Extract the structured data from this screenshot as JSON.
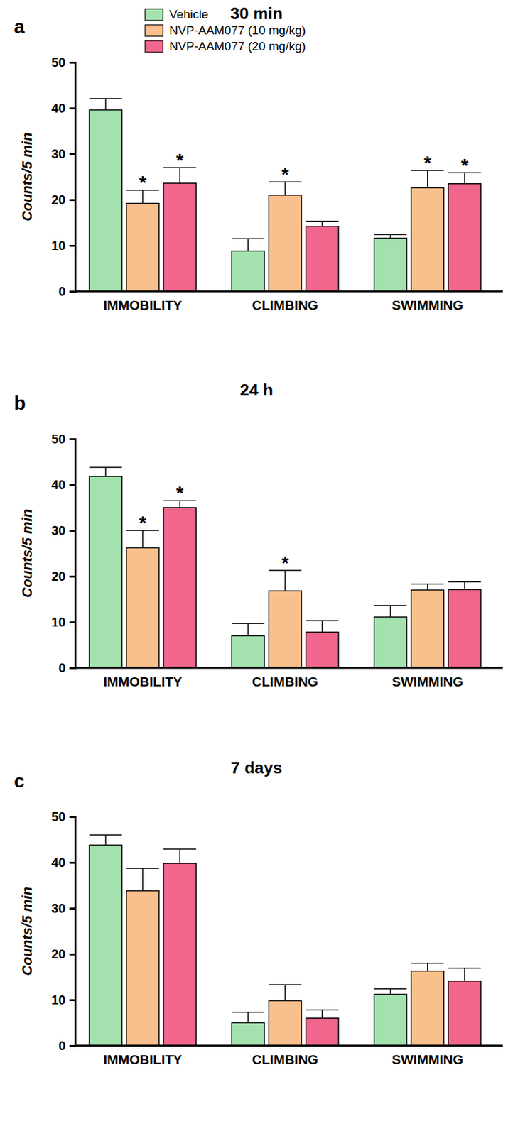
{
  "chart_data": [
    {
      "type": "bar",
      "title": "30 min",
      "panel_label": "a",
      "y_label": "Counts/5 min",
      "categories": [
        "IMMOBILITY",
        "CLIMBING",
        "SWIMMING"
      ],
      "ylim": [
        0,
        50
      ],
      "yticks": [
        0,
        10,
        20,
        30,
        40,
        50
      ],
      "legend": "upper left",
      "series": [
        {
          "name": "Vehicle",
          "color": "#a3e2ae",
          "values": [
            39.6,
            8.8,
            11.6
          ],
          "errors": [
            2.5,
            2.7,
            0.8
          ],
          "significance": [
            null,
            null,
            null
          ]
        },
        {
          "name": "NVP-AAM077 (10 mg/kg)",
          "color": "#f7c08c",
          "values": [
            19.2,
            21.0,
            22.6
          ],
          "errors": [
            2.9,
            2.9,
            3.8
          ],
          "significance": [
            "*",
            "*",
            "*"
          ]
        },
        {
          "name": "NVP-AAM077 (20 mg/kg)",
          "color": "#f0668c",
          "values": [
            23.6,
            14.2,
            23.5
          ],
          "errors": [
            3.4,
            1.1,
            2.4
          ],
          "significance": [
            "*",
            null,
            "*"
          ]
        }
      ]
    },
    {
      "type": "bar",
      "title": "24 h",
      "panel_label": "b",
      "y_label": "Counts/5 min",
      "categories": [
        "IMMOBILITY",
        "CLIMBING",
        "SWIMMING"
      ],
      "ylim": [
        0,
        50
      ],
      "yticks": [
        0,
        10,
        20,
        30,
        40,
        50
      ],
      "series": [
        {
          "color": "#a3e2ae",
          "values": [
            41.8,
            7.0,
            11.1
          ],
          "errors": [
            2.0,
            2.7,
            2.5
          ],
          "significance": [
            null,
            null,
            null
          ]
        },
        {
          "color": "#f7c08c",
          "values": [
            26.2,
            16.8,
            17.0
          ],
          "errors": [
            3.8,
            4.5,
            1.3
          ],
          "significance": [
            "*",
            "*",
            null
          ]
        },
        {
          "color": "#f0668c",
          "values": [
            35.0,
            7.8,
            17.1
          ],
          "errors": [
            1.5,
            2.5,
            1.7
          ],
          "significance": [
            "*",
            null,
            null
          ]
        }
      ]
    },
    {
      "type": "bar",
      "title": "7 days",
      "panel_label": "c",
      "y_label": "Counts/5 min",
      "categories": [
        "IMMOBILITY",
        "CLIMBING",
        "SWIMMING"
      ],
      "ylim": [
        0,
        50
      ],
      "yticks": [
        0,
        10,
        20,
        30,
        40,
        50
      ],
      "series": [
        {
          "color": "#a3e2ae",
          "values": [
            43.8,
            5.0,
            11.2
          ],
          "errors": [
            2.2,
            2.3,
            1.2
          ],
          "significance": [
            null,
            null,
            null
          ]
        },
        {
          "color": "#f7c08c",
          "values": [
            33.8,
            9.8,
            16.3
          ],
          "errors": [
            4.9,
            3.5,
            1.7
          ],
          "significance": [
            null,
            null,
            null
          ]
        },
        {
          "color": "#f0668c",
          "values": [
            39.8,
            6.0,
            14.1
          ],
          "errors": [
            3.1,
            1.8,
            2.8
          ],
          "significance": [
            null,
            null,
            null
          ]
        }
      ]
    }
  ]
}
